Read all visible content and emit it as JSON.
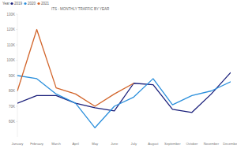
{
  "chart_data": {
    "type": "line",
    "title": "ITS - MONTHLY TRAFFIC BY YEAR",
    "legend_title": "Year",
    "categories": [
      "January",
      "February",
      "March",
      "April",
      "May",
      "June",
      "July",
      "August",
      "September",
      "October",
      "November",
      "December"
    ],
    "series": [
      {
        "name": "2019",
        "color": "#1a1f7a",
        "values": [
          72000,
          77000,
          77000,
          72000,
          69000,
          67000,
          85000,
          84000,
          68000,
          66000,
          78000,
          92000
        ]
      },
      {
        "name": "2020",
        "color": "#2b8fdc",
        "values": [
          90000,
          88000,
          78000,
          72000,
          56000,
          70000,
          76000,
          88000,
          71000,
          77000,
          80000,
          86000
        ]
      },
      {
        "name": "2021",
        "color": "#d2652b",
        "values": [
          80000,
          120000,
          82000,
          78000,
          70000,
          78000,
          85000,
          null,
          null,
          null,
          null,
          null
        ]
      }
    ],
    "ylim": [
      50000,
      130000
    ],
    "yticks": [
      {
        "value": 60000,
        "label": "60K"
      },
      {
        "value": 70000,
        "label": "70K"
      },
      {
        "value": 80000,
        "label": "80K"
      },
      {
        "value": 90000,
        "label": "90K"
      },
      {
        "value": 100000,
        "label": "100K"
      },
      {
        "value": 110000,
        "label": "110K"
      },
      {
        "value": 120000,
        "label": "120K"
      },
      {
        "value": 130000,
        "label": "130K"
      }
    ],
    "grid": false,
    "legend": "top"
  }
}
